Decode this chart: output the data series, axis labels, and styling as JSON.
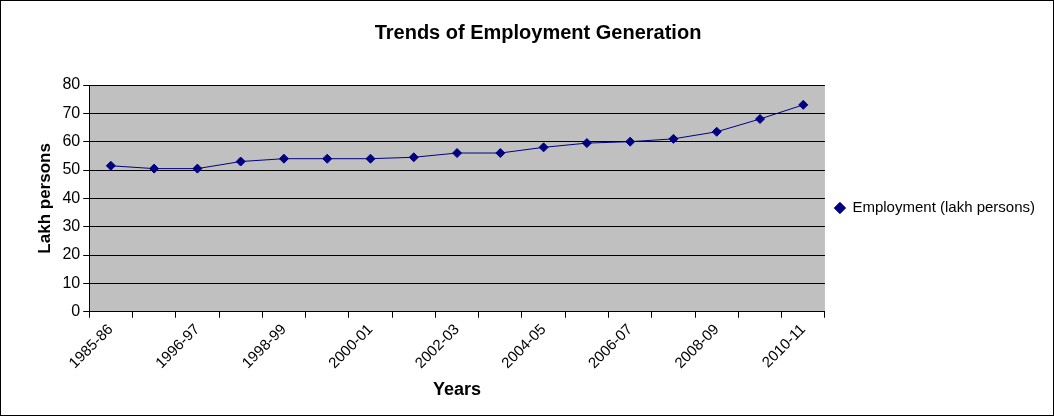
{
  "chart_data": {
    "type": "line",
    "title": "Trends of Employment Generation",
    "xlabel": "Years",
    "ylabel": "Lakh persons",
    "categories": [
      "1985-86",
      null,
      "1996-97",
      null,
      "1998-99",
      null,
      "2000-01",
      null,
      "2002-03",
      null,
      "2004-05",
      null,
      "2006-07",
      null,
      "2008-09",
      null,
      "2010-11"
    ],
    "series": [
      {
        "name": "Employment (lakh persons)",
        "color": "#000080",
        "values": [
          51.5,
          50.5,
          50.5,
          53,
          54,
          54,
          54,
          54.5,
          56,
          56,
          58,
          59.5,
          60,
          61,
          63.5,
          68,
          73
        ]
      }
    ],
    "ylim": [
      0,
      80
    ],
    "yticks": [
      0,
      10,
      20,
      30,
      40,
      50,
      60,
      70,
      80
    ],
    "grid": "y",
    "legend": "right",
    "marker": "diamond",
    "line_style": "solid"
  }
}
